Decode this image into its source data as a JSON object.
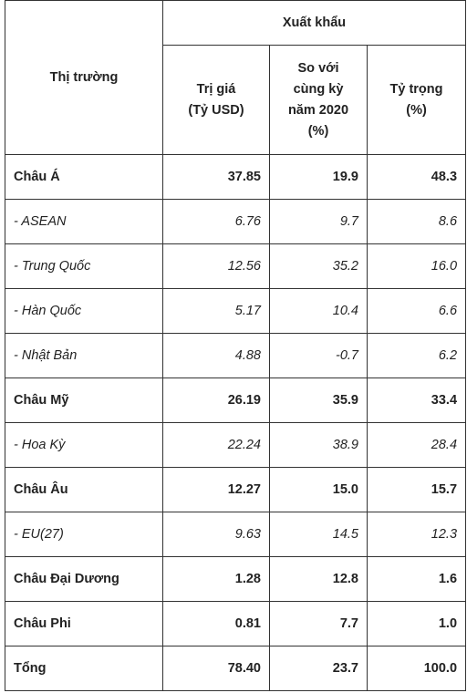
{
  "header": {
    "market": "Thị trường",
    "export": "Xuất khẩu",
    "value_line1": "Trị giá",
    "value_line2": "(Tỷ USD)",
    "yoy_line1": "So với",
    "yoy_line2": "cùng kỳ",
    "yoy_line3": "năm 2020",
    "yoy_line4": "(%)",
    "share_line1": "Tỷ trọng",
    "share_line2": "(%)"
  },
  "rows": [
    {
      "name": "Châu Á",
      "value": "37.85",
      "yoy": "19.9",
      "share": "48.3",
      "style": "bold"
    },
    {
      "name": "- ASEAN",
      "value": "6.76",
      "yoy": "9.7",
      "share": "8.6",
      "style": "italic"
    },
    {
      "name": "- Trung Quốc",
      "value": "12.56",
      "yoy": "35.2",
      "share": "16.0",
      "style": "italic"
    },
    {
      "name": "- Hàn Quốc",
      "value": "5.17",
      "yoy": "10.4",
      "share": "6.6",
      "style": "italic"
    },
    {
      "name": "- Nhật Bản",
      "value": "4.88",
      "yoy": "-0.7",
      "share": "6.2",
      "style": "italic"
    },
    {
      "name": "Châu Mỹ",
      "value": "26.19",
      "yoy": "35.9",
      "share": "33.4",
      "style": "bold"
    },
    {
      "name": "- Hoa Kỳ",
      "value": "22.24",
      "yoy": "38.9",
      "share": "28.4",
      "style": "italic"
    },
    {
      "name": "Châu Âu",
      "value": "12.27",
      "yoy": "15.0",
      "share": "15.7",
      "style": "bold"
    },
    {
      "name": "- EU(27)",
      "value": "9.63",
      "yoy": "14.5",
      "share": "12.3",
      "style": "italic"
    },
    {
      "name": "Châu Đại Dương",
      "value": "1.28",
      "yoy": "12.8",
      "share": "1.6",
      "style": "bold"
    },
    {
      "name": "Châu Phi",
      "value": "0.81",
      "yoy": "7.7",
      "share": "1.0",
      "style": "bold"
    },
    {
      "name": "Tổng",
      "value": "78.40",
      "yoy": "23.7",
      "share": "100.0",
      "style": "bold"
    }
  ]
}
